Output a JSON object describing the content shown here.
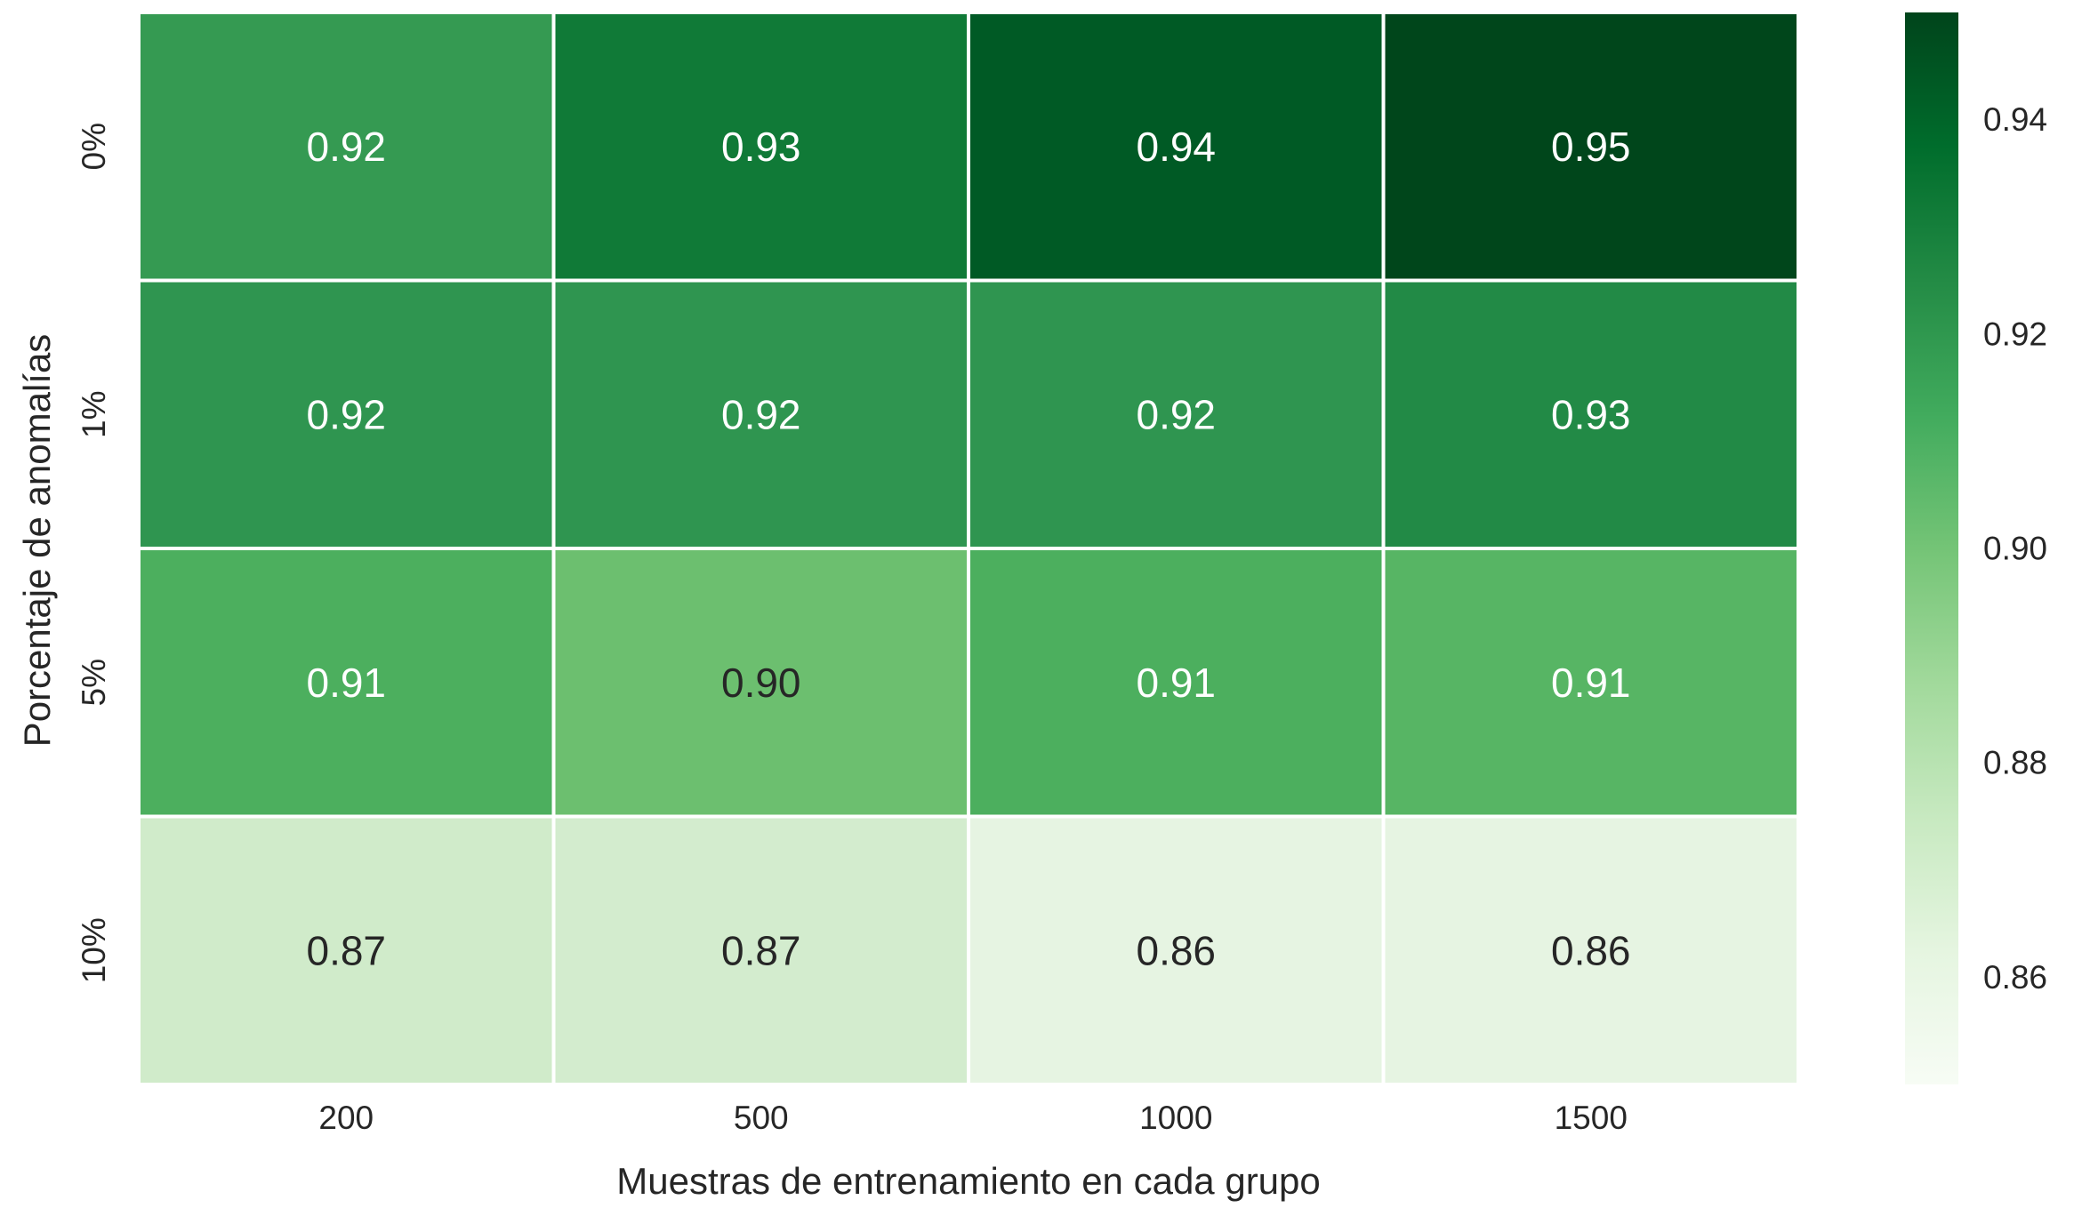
{
  "chart_data": {
    "type": "heatmap",
    "title": "",
    "xlabel": "Muestras de entrenamiento en cada grupo",
    "ylabel": "Porcentaje de anomalías",
    "x_categories": [
      "200",
      "500",
      "1000",
      "1500"
    ],
    "y_categories": [
      "0%",
      "1%",
      "5%",
      "10%"
    ],
    "values": [
      [
        0.92,
        0.93,
        0.94,
        0.95
      ],
      [
        0.92,
        0.92,
        0.92,
        0.93
      ],
      [
        0.91,
        0.9,
        0.91,
        0.91
      ],
      [
        0.87,
        0.87,
        0.86,
        0.86
      ]
    ],
    "cell_labels": [
      [
        "0.92",
        "0.93",
        "0.94",
        "0.95"
      ],
      [
        "0.92",
        "0.92",
        "0.92",
        "0.93"
      ],
      [
        "0.91",
        "0.90",
        "0.91",
        "0.91"
      ],
      [
        "0.87",
        "0.87",
        "0.86",
        "0.86"
      ]
    ],
    "colormap": "Greens",
    "colorbar": {
      "range": [
        0.85,
        0.95
      ],
      "ticks": [
        0.86,
        0.88,
        0.9,
        0.92,
        0.94
      ],
      "tick_labels": [
        "0.86",
        "0.88",
        "0.90",
        "0.92",
        "0.94"
      ]
    },
    "cell_colors": [
      [
        "#359a52",
        "#107a37",
        "#005a25",
        "#00461b"
      ],
      [
        "#2f9550",
        "#2f9550",
        "#2f9550",
        "#228a46"
      ],
      [
        "#4caf5e",
        "#6cbf6f",
        "#4caf5e",
        "#57b564"
      ],
      [
        "#d0ebca",
        "#d3ecce",
        "#e6f4e2",
        "#e6f4e2"
      ]
    ],
    "text_colors": [
      [
        "#ffffff",
        "#ffffff",
        "#ffffff",
        "#ffffff"
      ],
      [
        "#ffffff",
        "#ffffff",
        "#ffffff",
        "#ffffff"
      ],
      [
        "#ffffff",
        "#262626",
        "#ffffff",
        "#ffffff"
      ],
      [
        "#262626",
        "#262626",
        "#262626",
        "#262626"
      ]
    ],
    "gradient_colors": [
      "#f7fcf5",
      "#e5f5e0",
      "#c7e9c0",
      "#a1d99b",
      "#74c476",
      "#41ab5d",
      "#238b45",
      "#006d2c",
      "#00441b"
    ],
    "grid": false,
    "legend": "none"
  }
}
